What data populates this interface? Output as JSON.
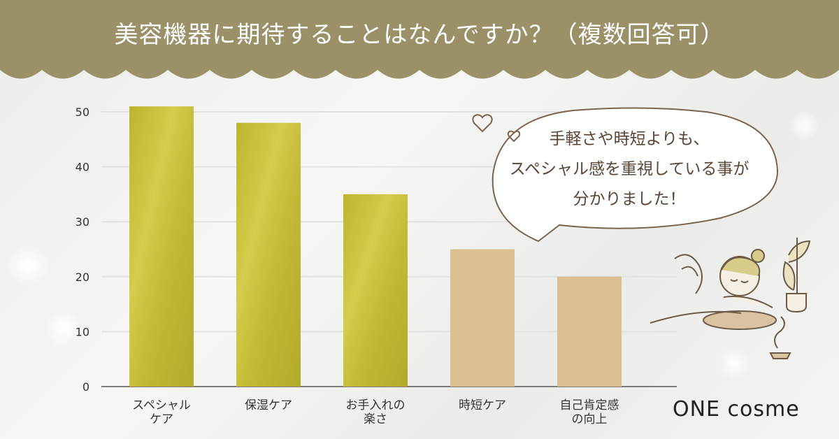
{
  "header": {
    "title": "美容機器に期待することはなんですか？（複数回答可）",
    "band_color": "#9a9168"
  },
  "bubble": {
    "lines": [
      "手軽さや時短よりも、",
      "スペシャル感を重視している事が",
      "分かりました！"
    ]
  },
  "logo": {
    "text": "ONE cosme"
  },
  "chart_data": {
    "type": "bar",
    "categories": [
      "スペシャル\nケア",
      "保湿ケア",
      "お手入れの\n楽さ",
      "時短ケア",
      "自己肯定感\nの向上"
    ],
    "values": [
      51,
      48,
      35,
      25,
      20
    ],
    "highlight": [
      true,
      true,
      true,
      false,
      false
    ],
    "colors": {
      "highlight": "#c9c03a",
      "normal": "#dbbf91",
      "grid": "#e2e2e2",
      "axis": "#555555"
    },
    "ylim": [
      0,
      50
    ],
    "yticks": [
      0,
      10,
      20,
      30,
      40,
      50
    ],
    "grid": true
  }
}
